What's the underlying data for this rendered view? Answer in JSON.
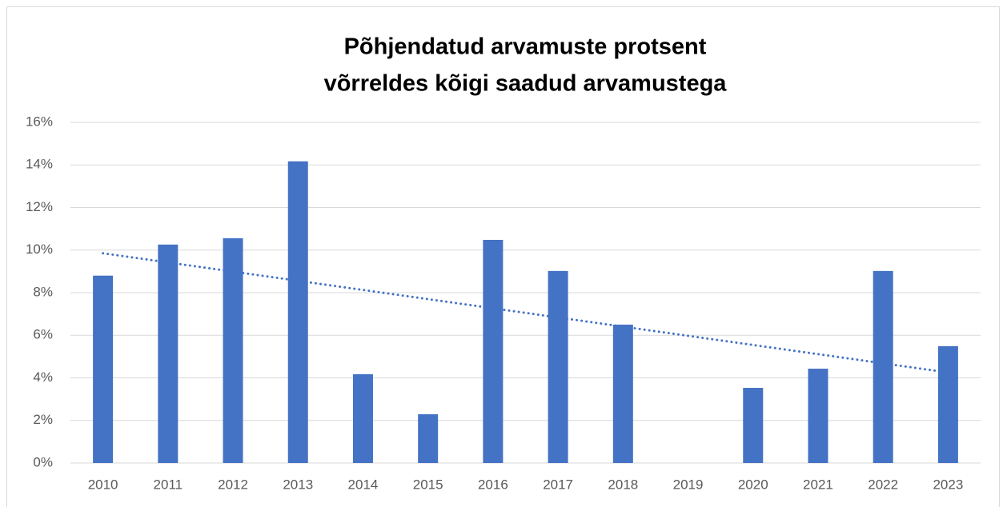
{
  "chart_data": {
    "type": "bar",
    "title": [
      "Põhjendatud arvamuste protsent",
      "võrreldes kõigi saadud arvamustega"
    ],
    "categories": [
      "2010",
      "2011",
      "2012",
      "2013",
      "2014",
      "2015",
      "2016",
      "2017",
      "2018",
      "2019",
      "2020",
      "2021",
      "2022",
      "2023"
    ],
    "values": [
      8.8,
      10.26,
      10.56,
      14.17,
      4.17,
      2.29,
      10.48,
      9.02,
      6.5,
      0,
      3.53,
      4.43,
      9.02,
      5.49
    ],
    "color": "#4472c4",
    "trendline": "linear",
    "ylim": [
      0,
      16
    ],
    "yticks": [
      {
        "value": 0,
        "label": "0%"
      },
      {
        "value": 2,
        "label": "2%"
      },
      {
        "value": 4,
        "label": "4%"
      },
      {
        "value": 6,
        "label": "6%"
      },
      {
        "value": 8,
        "label": "8%"
      },
      {
        "value": 10,
        "label": "10%"
      },
      {
        "value": 12,
        "label": "12%"
      },
      {
        "value": 14,
        "label": "14%"
      },
      {
        "value": 16,
        "label": "16%"
      }
    ],
    "grid": true
  }
}
